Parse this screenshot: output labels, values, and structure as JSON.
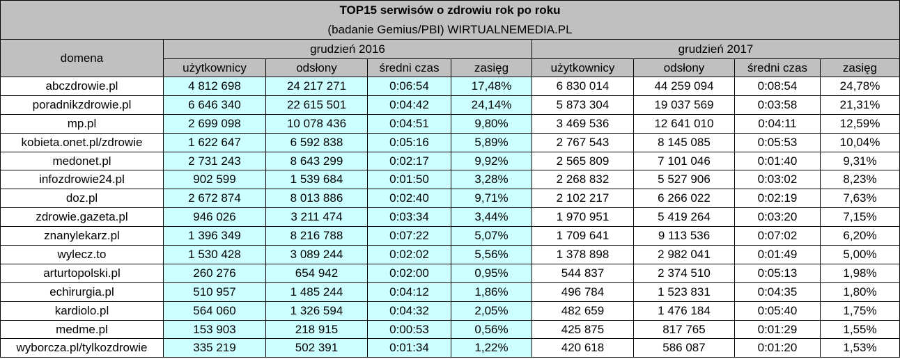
{
  "title": "TOP15 serwisów o zdrowiu rok po roku",
  "subtitle": "(badanie Gemius/PBI) WIRTUALNEMEDIA.PL",
  "domain_header": "domena",
  "periods": [
    "grudzień 2016",
    "grudzień 2017"
  ],
  "metric_headers": [
    "użytkownicy",
    "odsłony",
    "średni czas",
    "zasięg"
  ],
  "colors": {
    "header_bg": "#c0c0c0",
    "highlight_2016": "#ccffff",
    "border": "#000000"
  },
  "rows": [
    {
      "domain": "abczdrowie.pl",
      "y2016": [
        "4 812 698",
        "24 217 271",
        "0:06:54",
        "17,48%"
      ],
      "y2017": [
        "6 830 014",
        "44 259 094",
        "0:08:54",
        "24,78%"
      ]
    },
    {
      "domain": "poradnikzdrowie.pl",
      "y2016": [
        "6 646 340",
        "22 615 501",
        "0:04:42",
        "24,14%"
      ],
      "y2017": [
        "5 873 304",
        "19 037 569",
        "0:03:58",
        "21,31%"
      ]
    },
    {
      "domain": "mp.pl",
      "y2016": [
        "2 699 098",
        "10 078 436",
        "0:04:51",
        "9,80%"
      ],
      "y2017": [
        "3 469 536",
        "12 641 010",
        "0:04:11",
        "12,59%"
      ]
    },
    {
      "domain": "kobieta.onet.pl/zdrowie",
      "y2016": [
        "1 622 647",
        "6 592 838",
        "0:05:16",
        "5,89%"
      ],
      "y2017": [
        "2 767 543",
        "8 145 085",
        "0:05:53",
        "10,04%"
      ]
    },
    {
      "domain": "medonet.pl",
      "y2016": [
        "2 731 243",
        "8 643 299",
        "0:02:17",
        "9,92%"
      ],
      "y2017": [
        "2 565 809",
        "7 101 046",
        "0:01:40",
        "9,31%"
      ]
    },
    {
      "domain": "infozdrowie24.pl",
      "y2016": [
        "902 599",
        "1 539 684",
        "0:01:50",
        "3,28%"
      ],
      "y2017": [
        "2 268 832",
        "5 527 906",
        "0:03:02",
        "8,23%"
      ]
    },
    {
      "domain": "doz.pl",
      "y2016": [
        "2 672 874",
        "8 013 886",
        "0:02:40",
        "9,71%"
      ],
      "y2017": [
        "2 102 217",
        "6 266 022",
        "0:02:19",
        "7,63%"
      ]
    },
    {
      "domain": "zdrowie.gazeta.pl",
      "y2016": [
        "946 026",
        "3 211 474",
        "0:03:34",
        "3,44%"
      ],
      "y2017": [
        "1 970 951",
        "5 419 264",
        "0:03:20",
        "7,15%"
      ]
    },
    {
      "domain": "znanylekarz.pl",
      "y2016": [
        "1 396 349",
        "8 216 788",
        "0:07:22",
        "5,07%"
      ],
      "y2017": [
        "1 709 641",
        "9 113 536",
        "0:07:02",
        "6,20%"
      ]
    },
    {
      "domain": "wylecz.to",
      "y2016": [
        "1 530 428",
        "3 089 244",
        "0:02:02",
        "5,56%"
      ],
      "y2017": [
        "1 378 898",
        "2 982 041",
        "0:01:49",
        "5,00%"
      ]
    },
    {
      "domain": "arturtopolski.pl",
      "y2016": [
        "260 276",
        "654 942",
        "0:02:00",
        "0,95%"
      ],
      "y2017": [
        "544 837",
        "2 374 510",
        "0:05:13",
        "1,98%"
      ]
    },
    {
      "domain": "echirurgia.pl",
      "y2016": [
        "510 957",
        "1 485 244",
        "0:04:12",
        "1,86%"
      ],
      "y2017": [
        "496 784",
        "1 523 831",
        "0:04:35",
        "1,80%"
      ]
    },
    {
      "domain": "kardiolo.pl",
      "y2016": [
        "564 060",
        "1 326 594",
        "0:04:32",
        "2,05%"
      ],
      "y2017": [
        "482 659",
        "1 476 184",
        "0:05:40",
        "1,75%"
      ]
    },
    {
      "domain": "medme.pl",
      "y2016": [
        "153 903",
        "218 915",
        "0:00:53",
        "0,56%"
      ],
      "y2017": [
        "425 875",
        "817 765",
        "0:01:29",
        "1,55%"
      ]
    },
    {
      "domain": "wyborcza.pl/tylkozdrowie",
      "y2016": [
        "335 219",
        "502 391",
        "0:01:34",
        "1,22%"
      ],
      "y2017": [
        "420 618",
        "586 087",
        "0:01:20",
        "1,53%"
      ]
    }
  ]
}
